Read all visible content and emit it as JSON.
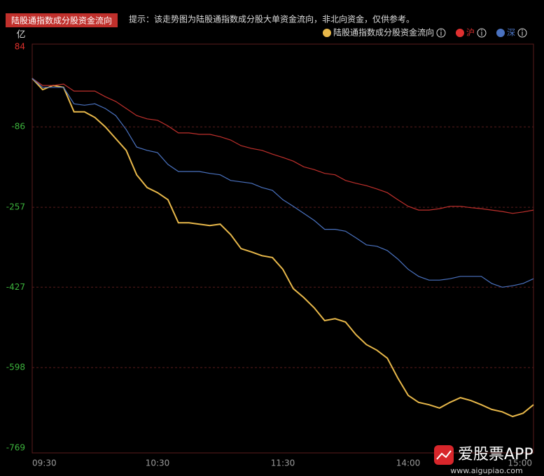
{
  "chart_data": {
    "type": "line",
    "title": "陆股通指数成分股资金流向",
    "note": "提示：该走势图为陆股通指数成分股大单资金流向，非北向资金，仅供参考。",
    "y_unit": "亿",
    "x": [
      "09:30",
      "09:35",
      "09:40",
      "09:45",
      "09:50",
      "09:55",
      "10:00",
      "10:05",
      "10:10",
      "10:15",
      "10:20",
      "10:25",
      "10:30",
      "10:35",
      "10:40",
      "10:45",
      "10:50",
      "10:55",
      "11:00",
      "11:05",
      "11:10",
      "11:15",
      "11:20",
      "11:25",
      "11:30",
      "13:05",
      "13:10",
      "13:15",
      "13:20",
      "13:25",
      "13:30",
      "13:35",
      "13:40",
      "13:45",
      "13:50",
      "13:55",
      "14:00",
      "14:05",
      "14:10",
      "14:15",
      "14:20",
      "14:25",
      "14:30",
      "14:35",
      "14:40",
      "14:45",
      "14:50",
      "14:55",
      "15:00"
    ],
    "xticks": [
      "09:30",
      "10:30",
      "11:30",
      "14:00",
      "15:00"
    ],
    "ylim": [
      -769,
      84
    ],
    "yticks": [
      84,
      -86,
      -257,
      -427,
      -598,
      -769
    ],
    "positive_color": "#e0302c",
    "negative_color": "#3cb43c",
    "grid": true,
    "series": [
      {
        "name": "陆股通指数成分股资金流向",
        "color": "#e8b84a",
        "values": [
          17,
          -7,
          2,
          -2,
          -54,
          -54,
          -66,
          -86,
          -111,
          -136,
          -188,
          -215,
          -226,
          -241,
          -290,
          -290,
          -293,
          -296,
          -293,
          -315,
          -345,
          -352,
          -360,
          -364,
          -389,
          -430,
          -449,
          -471,
          -498,
          -494,
          -501,
          -528,
          -549,
          -561,
          -578,
          -620,
          -657,
          -672,
          -677,
          -684,
          -672,
          -662,
          -668,
          -677,
          -687,
          -692,
          -702,
          -695,
          -677
        ]
      },
      {
        "name": "沪",
        "color": "#c0302c",
        "legend_color": "#e03030",
        "values": [
          17,
          2,
          2,
          5,
          -10,
          -10,
          -10,
          -22,
          -32,
          -47,
          -62,
          -69,
          -72,
          -84,
          -99,
          -99,
          -102,
          -102,
          -107,
          -114,
          -126,
          -132,
          -136,
          -144,
          -151,
          -159,
          -171,
          -177,
          -185,
          -188,
          -200,
          -206,
          -211,
          -218,
          -226,
          -241,
          -255,
          -263,
          -263,
          -260,
          -255,
          -255,
          -258,
          -260,
          -263,
          -266,
          -270,
          -267,
          -263
        ]
      },
      {
        "name": "深",
        "color": "#4a72c0",
        "legend_color": "#4a72c0",
        "values": [
          17,
          -2,
          -2,
          -2,
          -37,
          -40,
          -37,
          -47,
          -62,
          -92,
          -129,
          -136,
          -141,
          -166,
          -181,
          -181,
          -181,
          -185,
          -188,
          -200,
          -203,
          -206,
          -215,
          -221,
          -241,
          -255,
          -270,
          -285,
          -304,
          -304,
          -308,
          -322,
          -337,
          -340,
          -349,
          -367,
          -389,
          -404,
          -412,
          -412,
          -409,
          -404,
          -404,
          -404,
          -419,
          -427,
          -424,
          -419,
          -409
        ]
      }
    ]
  },
  "watermark": {
    "name": "爱股票APP",
    "url": "www.aigupiao.com"
  }
}
